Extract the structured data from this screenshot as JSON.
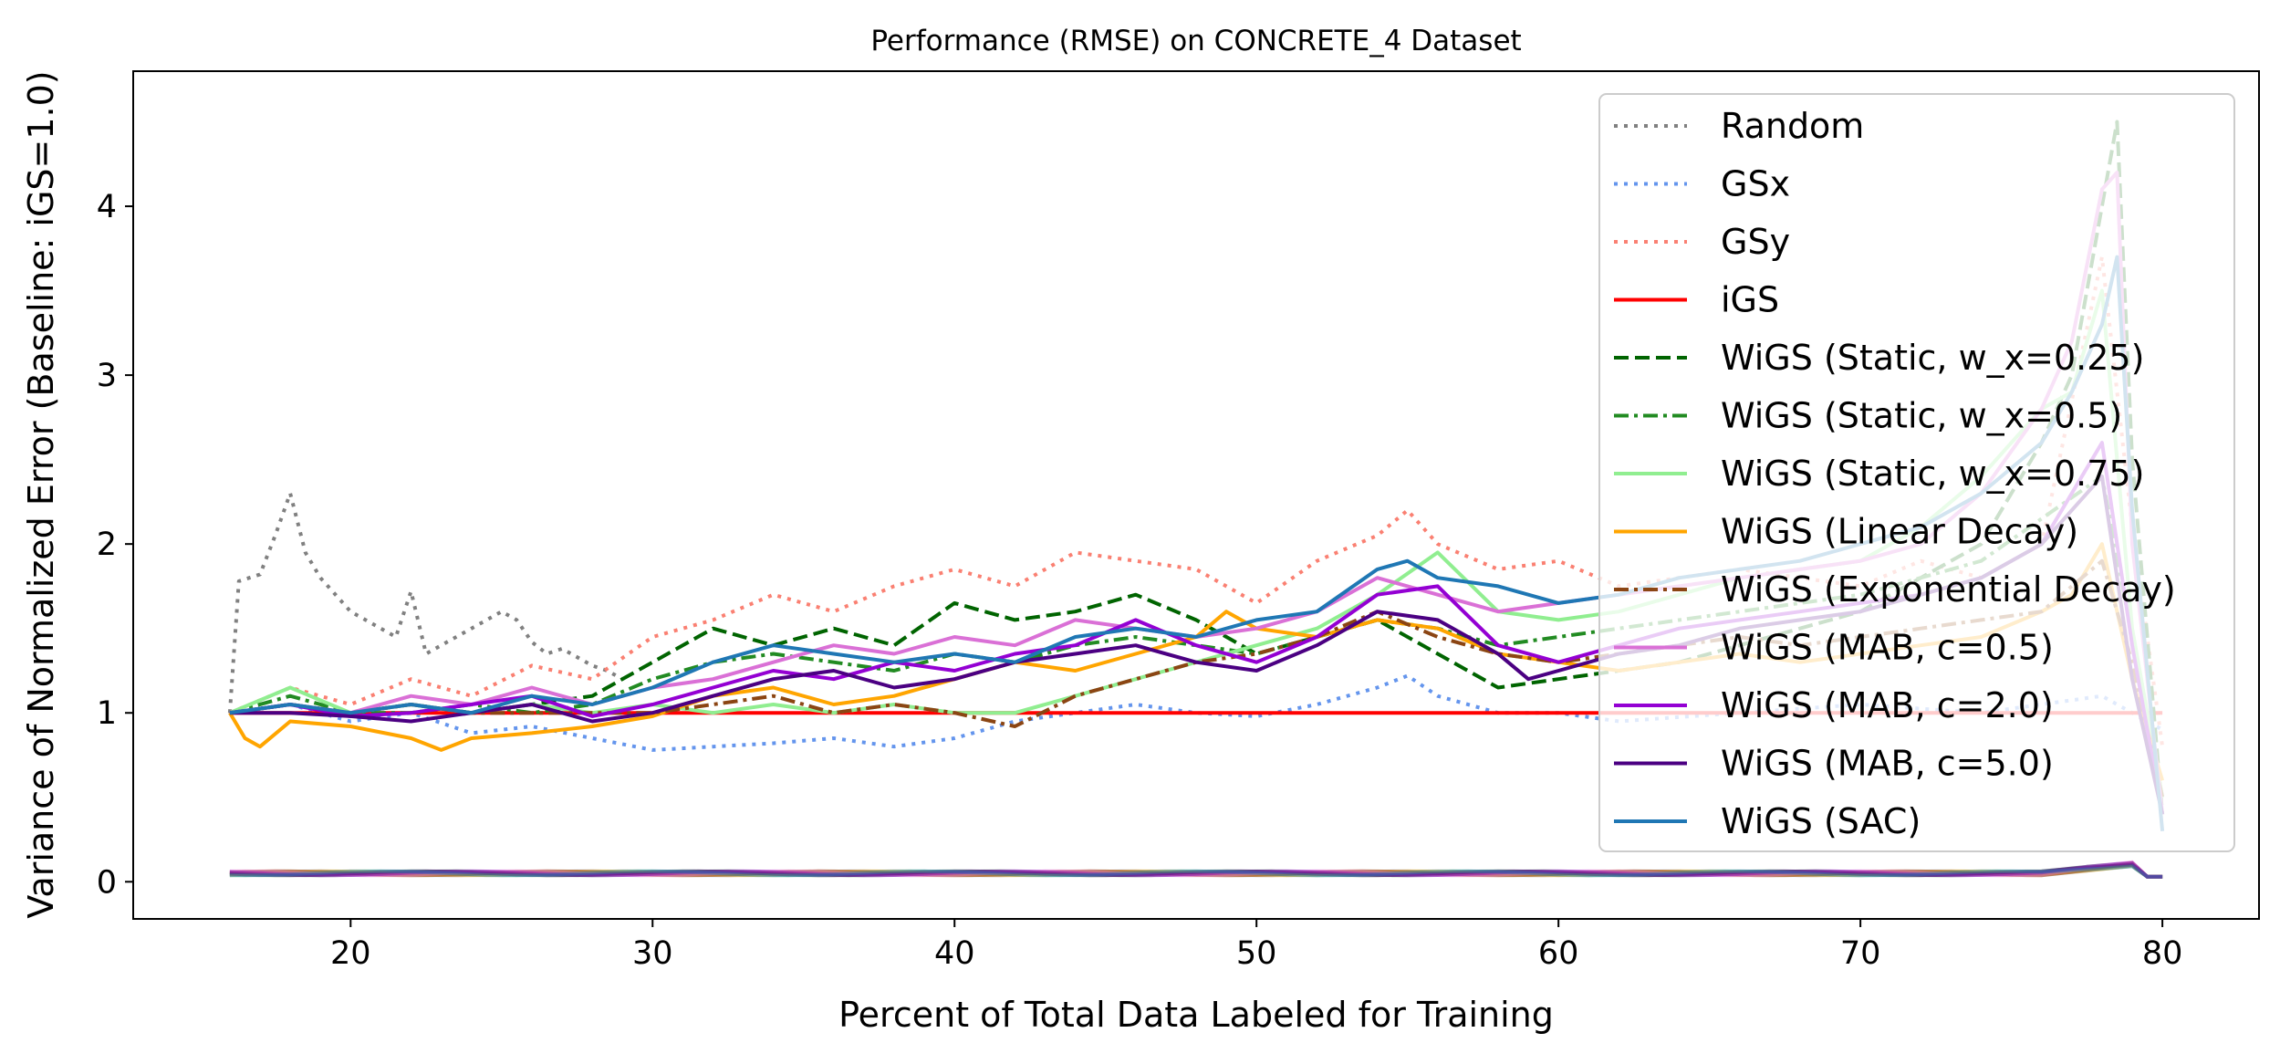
{
  "chart_data": {
    "type": "line",
    "title": "Performance (RMSE) on CONCRETE_4 Dataset",
    "xlabel": "Percent of Total Data Labeled for Training",
    "ylabel": "Variance of Normalized Error (Baseline: iGS=1.0)",
    "xlim": [
      12.8,
      83.2
    ],
    "ylim": [
      -0.22,
      4.8
    ],
    "xticks": [
      20,
      30,
      40,
      50,
      60,
      70,
      80
    ],
    "yticks": [
      0,
      1,
      2,
      3,
      4
    ],
    "grid": false,
    "legend_position": "top-right",
    "series": [
      {
        "name": "Random",
        "color": "#808080",
        "dash": "dotted",
        "x": [
          16,
          16.3,
          17,
          17.5,
          18,
          18.5,
          19,
          20,
          21,
          21.5,
          22,
          22.5,
          23,
          24,
          25,
          25.5,
          26,
          26.5,
          27,
          28,
          28.5,
          29
        ],
        "y": [
          1.0,
          1.78,
          1.82,
          2.05,
          2.3,
          1.95,
          1.8,
          1.6,
          1.5,
          1.45,
          1.72,
          1.35,
          1.4,
          1.5,
          1.6,
          1.55,
          1.42,
          1.35,
          1.38,
          1.28,
          1.25,
          1.2
        ]
      },
      {
        "name": "GSx",
        "color": "#6495ED",
        "dash": "dotted",
        "x": [
          16,
          18,
          20,
          22,
          24,
          26,
          28,
          30,
          32,
          34,
          36,
          38,
          40,
          42,
          44,
          46,
          48,
          50,
          52,
          54,
          55,
          56,
          58,
          60,
          62,
          66,
          70,
          74,
          78,
          80
        ],
        "y": [
          1.0,
          1.05,
          0.95,
          1.0,
          0.88,
          0.92,
          0.85,
          0.78,
          0.8,
          0.82,
          0.85,
          0.8,
          0.85,
          0.95,
          1.0,
          1.05,
          1.0,
          0.98,
          1.05,
          1.15,
          1.22,
          1.1,
          1.0,
          1.0,
          0.95,
          1.0,
          1.05,
          1.0,
          1.1,
          0.9
        ]
      },
      {
        "name": "GSy",
        "color": "#FA8072",
        "dash": "dotted",
        "x": [
          16,
          18,
          20,
          22,
          24,
          26,
          28,
          30,
          32,
          34,
          36,
          38,
          40,
          42,
          44,
          46,
          48,
          50,
          52,
          54,
          55,
          56,
          58,
          60,
          62,
          64,
          66,
          68,
          70,
          72,
          74,
          76,
          78,
          79,
          80
        ],
        "y": [
          1.0,
          1.15,
          1.05,
          1.2,
          1.1,
          1.28,
          1.2,
          1.45,
          1.55,
          1.7,
          1.6,
          1.75,
          1.85,
          1.75,
          1.95,
          1.9,
          1.85,
          1.65,
          1.9,
          2.05,
          2.2,
          2.0,
          1.85,
          1.9,
          1.75,
          1.8,
          1.85,
          1.8,
          1.75,
          1.9,
          1.8,
          2.0,
          3.7,
          2.1,
          0.8
        ]
      },
      {
        "name": "iGS",
        "color": "#FF0000",
        "dash": "solid",
        "x": [
          16,
          80
        ],
        "y": [
          1.0,
          1.0
        ]
      },
      {
        "name": "WiGS (Static, w_x=0.25)",
        "color": "#006400",
        "dash": "dashed",
        "x": [
          16,
          18,
          20,
          22,
          24,
          26,
          28,
          30,
          32,
          34,
          36,
          38,
          40,
          42,
          44,
          46,
          48,
          50,
          52,
          54,
          56,
          58,
          60,
          62,
          64,
          66,
          68,
          70,
          72,
          74,
          76,
          77,
          78,
          78.5,
          79,
          80
        ],
        "y": [
          1.0,
          1.05,
          1.0,
          1.05,
          1.0,
          1.05,
          1.1,
          1.3,
          1.5,
          1.4,
          1.5,
          1.4,
          1.65,
          1.55,
          1.6,
          1.7,
          1.55,
          1.35,
          1.45,
          1.55,
          1.35,
          1.15,
          1.2,
          1.25,
          1.3,
          1.4,
          1.5,
          1.6,
          1.8,
          2.0,
          2.6,
          3.0,
          4.0,
          4.5,
          2.5,
          0.4
        ]
      },
      {
        "name": "WiGS (Static, w_x=0.5)",
        "color": "#228B22",
        "dash": "dashdot",
        "x": [
          16,
          18,
          20,
          22,
          24,
          26,
          28,
          30,
          32,
          34,
          36,
          38,
          40,
          42,
          44,
          46,
          48,
          50,
          52,
          54,
          56,
          58,
          60,
          62,
          66,
          70,
          74,
          78,
          80
        ],
        "y": [
          1.0,
          1.1,
          1.0,
          1.0,
          1.05,
          1.0,
          1.05,
          1.2,
          1.3,
          1.35,
          1.3,
          1.25,
          1.35,
          1.3,
          1.4,
          1.45,
          1.4,
          1.35,
          1.45,
          1.55,
          1.5,
          1.4,
          1.45,
          1.5,
          1.6,
          1.7,
          1.9,
          2.4,
          0.5
        ]
      },
      {
        "name": "WiGS (Static, w_x=0.75)",
        "color": "#90EE90",
        "dash": "solid",
        "x": [
          16,
          18,
          20,
          22,
          24,
          26,
          28,
          30,
          32,
          34,
          36,
          38,
          40,
          42,
          44,
          46,
          48,
          50,
          52,
          54,
          56,
          58,
          60,
          62,
          64,
          66,
          68,
          70,
          72,
          74,
          76,
          77,
          78,
          79,
          80
        ],
        "y": [
          1.0,
          1.15,
          1.0,
          1.05,
          1.0,
          1.05,
          1.0,
          1.05,
          1.0,
          1.05,
          1.0,
          1.05,
          1.0,
          1.0,
          1.1,
          1.2,
          1.3,
          1.4,
          1.5,
          1.7,
          1.95,
          1.6,
          1.55,
          1.6,
          1.7,
          1.8,
          1.85,
          1.9,
          2.1,
          2.4,
          2.8,
          2.9,
          3.5,
          1.5,
          0.5
        ]
      },
      {
        "name": "WiGS (Linear Decay)",
        "color": "#FFA500",
        "dash": "solid",
        "x": [
          16,
          16.5,
          17,
          18,
          20,
          22,
          23,
          24,
          26,
          28,
          30,
          32,
          34,
          36,
          38,
          40,
          42,
          44,
          46,
          48,
          49,
          50,
          52,
          54,
          56,
          58,
          60,
          62,
          64,
          66,
          68,
          70,
          72,
          74,
          76,
          77,
          78,
          79,
          80
        ],
        "y": [
          1.0,
          0.85,
          0.8,
          0.95,
          0.92,
          0.85,
          0.78,
          0.85,
          0.88,
          0.92,
          0.98,
          1.1,
          1.15,
          1.05,
          1.1,
          1.2,
          1.3,
          1.25,
          1.35,
          1.45,
          1.6,
          1.5,
          1.45,
          1.55,
          1.5,
          1.35,
          1.3,
          1.25,
          1.3,
          1.35,
          1.3,
          1.35,
          1.4,
          1.45,
          1.6,
          1.7,
          2.0,
          1.2,
          0.6
        ]
      },
      {
        "name": "WiGS (Exponential Decay)",
        "color": "#8B4513",
        "dash": "dashdot",
        "x": [
          16,
          18,
          20,
          22,
          24,
          26,
          28,
          30,
          32,
          34,
          36,
          38,
          40,
          42,
          44,
          46,
          48,
          50,
          52,
          54,
          56,
          58,
          60,
          62,
          64,
          66,
          68,
          70,
          72,
          74,
          76,
          78,
          79,
          80
        ],
        "y": [
          1.0,
          1.05,
          1.0,
          1.05,
          1.0,
          1.0,
          1.0,
          1.0,
          1.05,
          1.1,
          1.0,
          1.05,
          1.0,
          0.92,
          1.1,
          1.2,
          1.3,
          1.35,
          1.45,
          1.6,
          1.45,
          1.35,
          1.3,
          1.35,
          1.4,
          1.45,
          1.4,
          1.45,
          1.5,
          1.55,
          1.6,
          1.9,
          1.3,
          0.5
        ]
      },
      {
        "name": "WiGS (MAB, c=0.5)",
        "color": "#DA70D6",
        "dash": "solid",
        "x": [
          16,
          18,
          20,
          22,
          24,
          26,
          28,
          30,
          32,
          34,
          36,
          38,
          40,
          42,
          44,
          46,
          48,
          50,
          52,
          54,
          56,
          58,
          60,
          62,
          64,
          66,
          68,
          70,
          72,
          74,
          76,
          77,
          78,
          78.5,
          79,
          80
        ],
        "y": [
          1.0,
          1.05,
          1.0,
          1.1,
          1.05,
          1.15,
          1.05,
          1.15,
          1.2,
          1.3,
          1.4,
          1.35,
          1.45,
          1.4,
          1.55,
          1.5,
          1.45,
          1.5,
          1.6,
          1.8,
          1.7,
          1.6,
          1.65,
          1.7,
          1.75,
          1.8,
          1.85,
          1.9,
          2.0,
          2.3,
          2.8,
          3.2,
          4.1,
          4.2,
          2.0,
          0.4
        ]
      },
      {
        "name": "WiGS (MAB, c=2.0)",
        "color": "#9400D3",
        "dash": "solid",
        "x": [
          16,
          18,
          20,
          22,
          24,
          26,
          28,
          30,
          32,
          34,
          36,
          38,
          40,
          42,
          44,
          46,
          48,
          50,
          52,
          54,
          56,
          58,
          60,
          62,
          64,
          66,
          68,
          70,
          72,
          74,
          76,
          78,
          79,
          80
        ],
        "y": [
          1.0,
          1.05,
          0.98,
          1.0,
          1.05,
          1.1,
          0.98,
          1.05,
          1.15,
          1.25,
          1.2,
          1.3,
          1.25,
          1.35,
          1.4,
          1.55,
          1.4,
          1.3,
          1.45,
          1.7,
          1.75,
          1.4,
          1.3,
          1.4,
          1.5,
          1.55,
          1.6,
          1.65,
          1.7,
          1.8,
          2.0,
          2.6,
          1.4,
          0.4
        ]
      },
      {
        "name": "WiGS (MAB, c=5.0)",
        "color": "#4B0082",
        "dash": "solid",
        "x": [
          16,
          18,
          20,
          22,
          24,
          26,
          28,
          30,
          32,
          34,
          36,
          38,
          40,
          42,
          44,
          46,
          48,
          50,
          52,
          54,
          56,
          58,
          59,
          60,
          62,
          64,
          66,
          68,
          70,
          72,
          74,
          76,
          78,
          79,
          80
        ],
        "y": [
          1.0,
          1.0,
          0.98,
          0.95,
          1.0,
          1.05,
          0.95,
          1.0,
          1.1,
          1.2,
          1.25,
          1.15,
          1.2,
          1.3,
          1.35,
          1.4,
          1.3,
          1.25,
          1.4,
          1.6,
          1.55,
          1.35,
          1.2,
          1.25,
          1.35,
          1.4,
          1.5,
          1.55,
          1.6,
          1.7,
          1.8,
          2.0,
          2.4,
          1.2,
          0.4
        ]
      },
      {
        "name": "WiGS (SAC)",
        "color": "#1F77B4",
        "dash": "solid",
        "x": [
          16,
          18,
          20,
          22,
          24,
          26,
          28,
          30,
          32,
          34,
          36,
          38,
          40,
          42,
          44,
          46,
          48,
          50,
          52,
          54,
          55,
          56,
          58,
          60,
          62,
          64,
          66,
          68,
          70,
          72,
          74,
          76,
          77,
          78,
          78.5,
          79,
          80
        ],
        "y": [
          1.0,
          1.05,
          1.0,
          1.05,
          1.0,
          1.1,
          1.05,
          1.15,
          1.3,
          1.4,
          1.35,
          1.3,
          1.35,
          1.3,
          1.45,
          1.5,
          1.45,
          1.55,
          1.6,
          1.85,
          1.9,
          1.8,
          1.75,
          1.65,
          1.7,
          1.8,
          1.85,
          1.9,
          2.0,
          2.1,
          2.3,
          2.6,
          2.9,
          3.3,
          3.7,
          2.2,
          0.3
        ]
      }
    ]
  }
}
